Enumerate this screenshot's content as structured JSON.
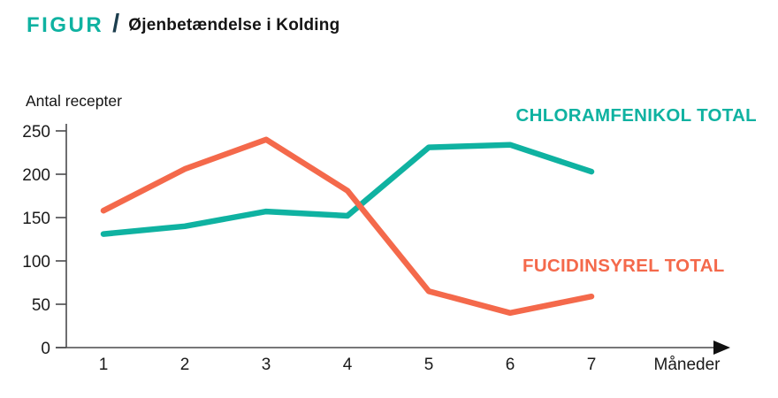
{
  "header": {
    "kicker": "FIGUR",
    "separator": "/",
    "title": "Øjenbetændelse i Kolding"
  },
  "colors": {
    "teal": "#0FB2A1",
    "orange": "#F4694B",
    "slash": "#1C3E4E",
    "axis": "#4A4A4C",
    "text": "#1A1A1A"
  },
  "chart_data": {
    "type": "line",
    "title": "Øjenbetændelse i Kolding",
    "ylabel": "Antal recepter",
    "xlabel": "Måneder",
    "x": [
      1,
      2,
      3,
      4,
      5,
      6,
      7
    ],
    "xticks": [
      "1",
      "2",
      "3",
      "4",
      "5",
      "6",
      "7"
    ],
    "yticks": [
      0,
      50,
      100,
      150,
      200,
      250
    ],
    "ylim": [
      0,
      250
    ],
    "grid": false,
    "legend_position": "inline-right-of-lines",
    "series": [
      {
        "name": "CHLORAMFENIKOL TOTAL",
        "color": "#0FB2A1",
        "values": [
          131,
          140,
          157,
          152,
          231,
          234,
          203
        ]
      },
      {
        "name": "FUCIDINSYREL TOTAL",
        "color": "#F4694B",
        "values": [
          158,
          206,
          240,
          181,
          65,
          40,
          59
        ]
      }
    ]
  }
}
